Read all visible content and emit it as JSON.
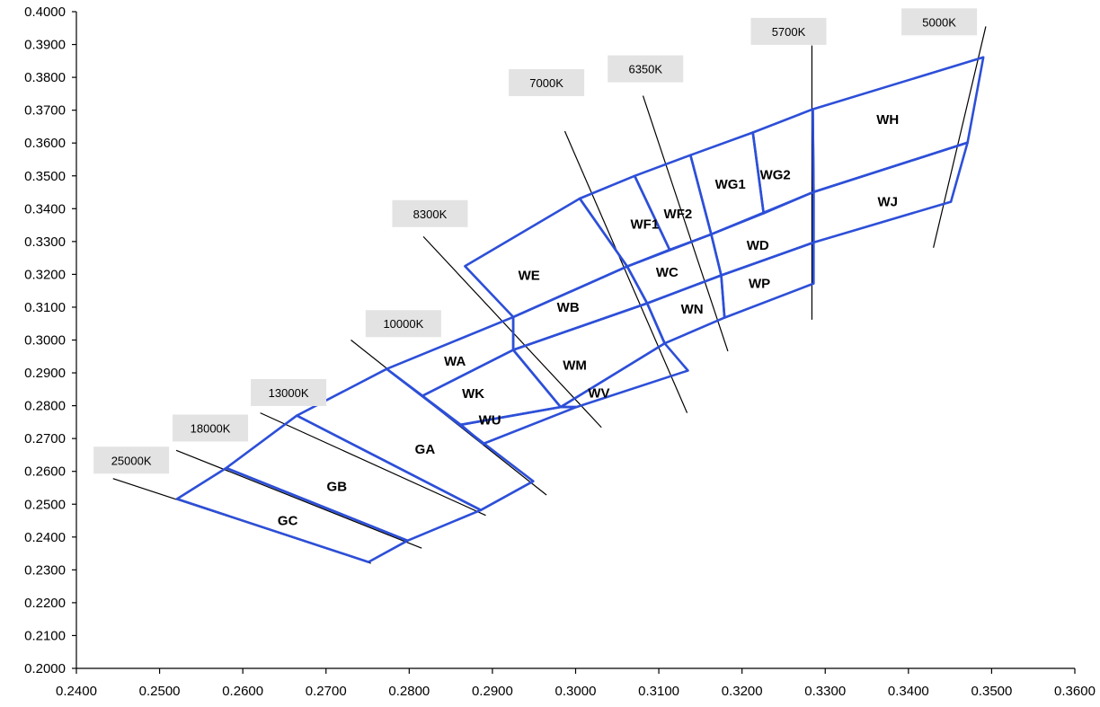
{
  "chart_data": {
    "type": "line",
    "x_ticks": [
      "0.2400",
      "0.2500",
      "0.2600",
      "0.2700",
      "0.2800",
      "0.2900",
      "0.3000",
      "0.3100",
      "0.3200",
      "0.3300",
      "0.3400",
      "0.3500",
      "0.3600"
    ],
    "y_ticks": [
      "0.2000",
      "0.2100",
      "0.2200",
      "0.2300",
      "0.2400",
      "0.2500",
      "0.2600",
      "0.2700",
      "0.2800",
      "0.2900",
      "0.3000",
      "0.3100",
      "0.3200",
      "0.3300",
      "0.3400",
      "0.3500",
      "0.3600",
      "0.3700",
      "0.3800",
      "0.3900",
      "0.4000"
    ],
    "xlim": [
      0.24,
      0.36
    ],
    "ylim": [
      0.2,
      0.4
    ],
    "grid": false,
    "bin_color": "#2d4fd8",
    "cct_lines": [
      {
        "label": "25000K",
        "label_anchor": [
          0.2466,
          0.2634
        ],
        "p1": [
          0.2444,
          0.2578
        ],
        "p2": [
          0.2754,
          0.232
        ]
      },
      {
        "label": "18000K",
        "label_anchor": [
          0.2561,
          0.2732
        ],
        "p1": [
          0.252,
          0.2664
        ],
        "p2": [
          0.2815,
          0.2366
        ]
      },
      {
        "label": "13000K",
        "label_anchor": [
          0.2655,
          0.284
        ],
        "p1": [
          0.2621,
          0.2778
        ],
        "p2": [
          0.2892,
          0.2466
        ]
      },
      {
        "label": "10000K",
        "label_anchor": [
          0.2793,
          0.305
        ],
        "p1": [
          0.273,
          0.3
        ],
        "p2": [
          0.2965,
          0.2528
        ]
      },
      {
        "label": "8300K",
        "label_anchor": [
          0.2825,
          0.3385
        ],
        "p1": [
          0.2817,
          0.3315
        ],
        "p2": [
          0.3031,
          0.2734
        ]
      },
      {
        "label": "7000K",
        "label_anchor": [
          0.2965,
          0.3784
        ],
        "p1": [
          0.2987,
          0.3636
        ],
        "p2": [
          0.3134,
          0.2778
        ]
      },
      {
        "label": "6350K",
        "label_anchor": [
          0.3084,
          0.3826
        ],
        "p1": [
          0.3081,
          0.3744
        ],
        "p2": [
          0.3183,
          0.2966
        ]
      },
      {
        "label": "5700K",
        "label_anchor": [
          0.3256,
          0.394
        ],
        "p1": [
          0.3284,
          0.3897
        ],
        "p2": [
          0.3284,
          0.3062
        ]
      },
      {
        "label": "5000K",
        "label_anchor": [
          0.3437,
          0.3969
        ],
        "p1": [
          0.3493,
          0.3955
        ],
        "p2": [
          0.343,
          0.3281
        ]
      }
    ],
    "bins": [
      {
        "name": "GC",
        "label_at": [
          0.2654,
          0.245
        ],
        "vertices": [
          [
            0.2521,
            0.2516
          ],
          [
            0.258,
            0.261
          ],
          [
            0.2798,
            0.2389
          ],
          [
            0.2751,
            0.2324
          ]
        ]
      },
      {
        "name": "GB",
        "label_at": [
          0.2713,
          0.2554
        ],
        "vertices": [
          [
            0.258,
            0.261
          ],
          [
            0.2665,
            0.277
          ],
          [
            0.2886,
            0.2482
          ],
          [
            0.2798,
            0.2389
          ]
        ]
      },
      {
        "name": "GA",
        "label_at": [
          0.2819,
          0.2668
        ],
        "vertices": [
          [
            0.2665,
            0.277
          ],
          [
            0.2773,
            0.2912
          ],
          [
            0.2949,
            0.257
          ],
          [
            0.2886,
            0.2482
          ]
        ]
      },
      {
        "name": "WA",
        "label_at": [
          0.2855,
          0.2936
        ],
        "vertices": [
          [
            0.2773,
            0.2912
          ],
          [
            0.2816,
            0.283
          ],
          [
            0.2925,
            0.297
          ],
          [
            0.2925,
            0.307
          ]
        ]
      },
      {
        "name": "WE",
        "label_at": [
          0.2944,
          0.3197
        ],
        "vertices": [
          [
            0.2867,
            0.3225
          ],
          [
            0.3005,
            0.3431
          ],
          [
            0.3062,
            0.3224
          ],
          [
            0.2925,
            0.307
          ]
        ]
      },
      {
        "name": "WB",
        "label_at": [
          0.2991,
          0.31
        ],
        "vertices": [
          [
            0.2925,
            0.307
          ],
          [
            0.3062,
            0.3224
          ],
          [
            0.3086,
            0.3112
          ],
          [
            0.2925,
            0.297
          ]
        ]
      },
      {
        "name": "WK",
        "label_at": [
          0.2877,
          0.2837
        ],
        "vertices": [
          [
            0.2816,
            0.283
          ],
          [
            0.2862,
            0.2742
          ],
          [
            0.2982,
            0.2796
          ],
          [
            0.2925,
            0.297
          ]
        ]
      },
      {
        "name": "WM",
        "label_at": [
          0.2999,
          0.2924
        ],
        "vertices": [
          [
            0.2925,
            0.297
          ],
          [
            0.3086,
            0.3112
          ],
          [
            0.3107,
            0.299
          ],
          [
            0.2982,
            0.2796
          ]
        ]
      },
      {
        "name": "WU",
        "label_at": [
          0.2897,
          0.2756
        ],
        "vertices": [
          [
            0.2862,
            0.2742
          ],
          [
            0.2889,
            0.2684
          ],
          [
            0.3001,
            0.2796
          ],
          [
            0.2982,
            0.2796
          ]
        ]
      },
      {
        "name": "WV",
        "label_at": [
          0.3028,
          0.2838
        ],
        "vertices": [
          [
            0.2982,
            0.2796
          ],
          [
            0.3001,
            0.2796
          ],
          [
            0.3135,
            0.2907
          ],
          [
            0.3107,
            0.299
          ]
        ]
      },
      {
        "name": "WF1",
        "label_at": [
          0.3083,
          0.3353
        ],
        "vertices": [
          [
            0.3005,
            0.3431
          ],
          [
            0.3071,
            0.35
          ],
          [
            0.3113,
            0.3275
          ],
          [
            0.3062,
            0.3224
          ]
        ]
      },
      {
        "name": "WF2",
        "label_at": [
          0.3123,
          0.3385
        ],
        "vertices": [
          [
            0.3071,
            0.35
          ],
          [
            0.3138,
            0.3563
          ],
          [
            0.3163,
            0.3322
          ],
          [
            0.3113,
            0.3275
          ]
        ]
      },
      {
        "name": "WC",
        "label_at": [
          0.311,
          0.3206
        ],
        "vertices": [
          [
            0.3062,
            0.3224
          ],
          [
            0.3163,
            0.3322
          ],
          [
            0.3175,
            0.3197
          ],
          [
            0.3086,
            0.3112
          ]
        ]
      },
      {
        "name": "WN",
        "label_at": [
          0.314,
          0.3094
        ],
        "vertices": [
          [
            0.3086,
            0.3112
          ],
          [
            0.3175,
            0.3197
          ],
          [
            0.3179,
            0.3068
          ],
          [
            0.3107,
            0.299
          ]
        ]
      },
      {
        "name": "WG1",
        "label_at": [
          0.3186,
          0.3475
        ],
        "vertices": [
          [
            0.3138,
            0.3563
          ],
          [
            0.3213,
            0.3632
          ],
          [
            0.3226,
            0.3386
          ],
          [
            0.3163,
            0.3322
          ]
        ]
      },
      {
        "name": "WG2",
        "label_at": [
          0.324,
          0.3504
        ],
        "vertices": [
          [
            0.3213,
            0.3632
          ],
          [
            0.3285,
            0.3703
          ],
          [
            0.3286,
            0.3451
          ],
          [
            0.3226,
            0.3386
          ]
        ]
      },
      {
        "name": "WD",
        "label_at": [
          0.3219,
          0.3288
        ],
        "vertices": [
          [
            0.3163,
            0.3322
          ],
          [
            0.3286,
            0.3451
          ],
          [
            0.3286,
            0.3297
          ],
          [
            0.3175,
            0.3197
          ]
        ]
      },
      {
        "name": "WP",
        "label_at": [
          0.3221,
          0.3172
        ],
        "vertices": [
          [
            0.3175,
            0.3197
          ],
          [
            0.3286,
            0.3297
          ],
          [
            0.3286,
            0.3172
          ],
          [
            0.3179,
            0.3068
          ]
        ]
      },
      {
        "name": "WH",
        "label_at": [
          0.3375,
          0.3672
        ],
        "vertices": [
          [
            0.3285,
            0.3703
          ],
          [
            0.349,
            0.3861
          ],
          [
            0.3471,
            0.3601
          ],
          [
            0.3286,
            0.3451
          ]
        ]
      },
      {
        "name": "WJ",
        "label_at": [
          0.3375,
          0.3422
        ],
        "vertices": [
          [
            0.3286,
            0.3451
          ],
          [
            0.3471,
            0.3601
          ],
          [
            0.3451,
            0.3421
          ],
          [
            0.3286,
            0.3297
          ]
        ]
      }
    ]
  }
}
